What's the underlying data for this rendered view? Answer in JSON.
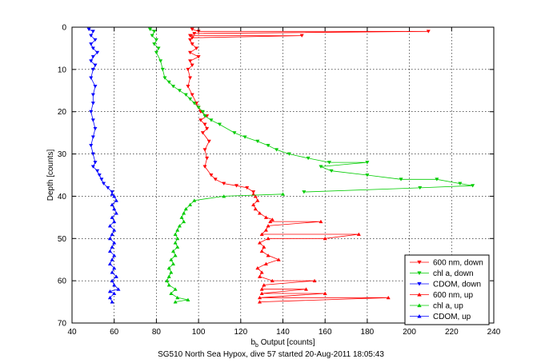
{
  "chart_data": {
    "type": "line",
    "title": "",
    "caption": "SG510 North Sea Hypox, dive 57 started 20-Aug-2011 18:05:43",
    "xlabel_main": "b",
    "xlabel_sub": "b",
    "xlabel_rest": " Output [counts]",
    "ylabel": "Depth [counts]",
    "xlim": [
      40,
      240
    ],
    "ylim": [
      0,
      70
    ],
    "y_reversed": true,
    "grid": true,
    "legend_position": "bottom-right",
    "xticks": [
      "40",
      "60",
      "80",
      "100",
      "120",
      "140",
      "160",
      "180",
      "200",
      "220",
      "240"
    ],
    "yticks": [
      "0",
      "10",
      "20",
      "30",
      "40",
      "50",
      "60",
      "70"
    ],
    "series": [
      {
        "name": "600 nm, down",
        "color": "#ff0000",
        "marker": "down",
        "points": [
          [
            97,
            0.5
          ],
          [
            100,
            1
          ],
          [
            209,
            1
          ],
          [
            98,
            1.5
          ],
          [
            96,
            2
          ],
          [
            149,
            2
          ],
          [
            97,
            2.5
          ],
          [
            96,
            3
          ],
          [
            97,
            4
          ],
          [
            99,
            5
          ],
          [
            96,
            6
          ],
          [
            100,
            7
          ],
          [
            96,
            8
          ],
          [
            97,
            9
          ],
          [
            95,
            10
          ],
          [
            96,
            12
          ],
          [
            95,
            14
          ],
          [
            97,
            16
          ],
          [
            99,
            18
          ],
          [
            100,
            19
          ],
          [
            101,
            20
          ],
          [
            104,
            21
          ],
          [
            101,
            22
          ],
          [
            103,
            23
          ],
          [
            104,
            24
          ],
          [
            102,
            25
          ],
          [
            105,
            27
          ],
          [
            103,
            29
          ],
          [
            104,
            31
          ],
          [
            103,
            33
          ],
          [
            106,
            35
          ],
          [
            108,
            36
          ],
          [
            112,
            37
          ],
          [
            118,
            37.5
          ],
          [
            123,
            38
          ],
          [
            126,
            39
          ]
        ]
      },
      {
        "name": "chl a, down",
        "color": "#00cc00",
        "marker": "down",
        "points": [
          [
            77,
            0.5
          ],
          [
            79,
            1
          ],
          [
            78,
            2
          ],
          [
            80,
            3
          ],
          [
            79,
            4
          ],
          [
            81,
            5
          ],
          [
            80,
            6
          ],
          [
            82,
            8
          ],
          [
            83,
            10
          ],
          [
            84,
            12
          ],
          [
            86,
            13
          ],
          [
            88,
            14
          ],
          [
            91,
            15
          ],
          [
            94,
            16
          ],
          [
            96,
            17
          ],
          [
            98,
            18
          ],
          [
            100,
            19
          ],
          [
            102,
            20
          ],
          [
            103,
            21
          ],
          [
            106,
            22
          ],
          [
            110,
            23
          ],
          [
            117,
            25
          ],
          [
            122,
            26
          ],
          [
            128,
            27
          ],
          [
            133,
            28
          ],
          [
            137,
            29
          ],
          [
            143,
            30
          ],
          [
            152,
            31
          ],
          [
            162,
            32
          ],
          [
            180,
            32
          ],
          [
            158,
            33
          ],
          [
            163,
            34
          ],
          [
            180,
            35
          ],
          [
            196,
            36
          ],
          [
            213,
            36
          ],
          [
            224,
            37
          ],
          [
            230,
            37.5
          ],
          [
            205,
            38
          ],
          [
            150,
            39
          ]
        ]
      },
      {
        "name": "CDOM, down",
        "color": "#0000ff",
        "marker": "down",
        "points": [
          [
            48,
            0.5
          ],
          [
            50,
            1
          ],
          [
            49,
            2
          ],
          [
            51,
            3
          ],
          [
            49,
            4
          ],
          [
            50,
            5
          ],
          [
            52,
            6
          ],
          [
            50,
            7
          ],
          [
            49,
            8
          ],
          [
            51,
            9
          ],
          [
            50,
            10
          ],
          [
            49,
            12
          ],
          [
            51,
            14
          ],
          [
            50,
            16
          ],
          [
            50,
            18
          ],
          [
            49,
            20
          ],
          [
            50,
            22
          ],
          [
            51,
            24
          ],
          [
            50,
            26
          ],
          [
            49,
            28
          ],
          [
            50,
            30
          ],
          [
            51,
            32
          ],
          [
            50,
            33
          ],
          [
            52,
            34
          ],
          [
            53,
            35
          ],
          [
            54,
            36
          ],
          [
            55,
            37
          ],
          [
            57,
            38
          ],
          [
            59,
            39
          ]
        ]
      },
      {
        "name": "600 nm, up",
        "color": "#ff0000",
        "marker": "up",
        "points": [
          [
            126,
            39.5
          ],
          [
            127,
            40
          ],
          [
            128,
            41
          ],
          [
            126,
            42
          ],
          [
            127,
            43
          ],
          [
            129,
            44
          ],
          [
            132,
            45
          ],
          [
            135,
            45.5
          ],
          [
            134,
            46
          ],
          [
            158,
            46
          ],
          [
            133,
            47
          ],
          [
            132,
            48
          ],
          [
            130,
            49
          ],
          [
            176,
            49
          ],
          [
            160,
            50
          ],
          [
            133,
            50
          ],
          [
            129,
            51
          ],
          [
            131,
            52
          ],
          [
            130,
            53
          ],
          [
            133,
            54
          ],
          [
            138,
            55
          ],
          [
            132,
            56
          ],
          [
            128,
            57
          ],
          [
            130,
            58
          ],
          [
            129,
            59
          ],
          [
            135,
            60
          ],
          [
            155,
            60
          ],
          [
            131,
            61
          ],
          [
            130,
            62
          ],
          [
            151,
            62
          ],
          [
            130,
            63
          ],
          [
            160,
            63
          ],
          [
            129,
            64
          ],
          [
            190,
            64
          ],
          [
            129,
            65
          ]
        ]
      },
      {
        "name": "chl a, up",
        "color": "#00cc00",
        "marker": "up",
        "points": [
          [
            140,
            39.5
          ],
          [
            112,
            40
          ],
          [
            98,
            41
          ],
          [
            96,
            42
          ],
          [
            94,
            43
          ],
          [
            93,
            44
          ],
          [
            92,
            45
          ],
          [
            93,
            46
          ],
          [
            91,
            47
          ],
          [
            90,
            48
          ],
          [
            89,
            49
          ],
          [
            90,
            50
          ],
          [
            89,
            51
          ],
          [
            90,
            52
          ],
          [
            88,
            53
          ],
          [
            89,
            54
          ],
          [
            87,
            55
          ],
          [
            88,
            56
          ],
          [
            86,
            57
          ],
          [
            87,
            58
          ],
          [
            86,
            59
          ],
          [
            85,
            60
          ],
          [
            86,
            61
          ],
          [
            89,
            62
          ],
          [
            87,
            63
          ],
          [
            90,
            64
          ],
          [
            95,
            64.5
          ],
          [
            89,
            65
          ]
        ]
      },
      {
        "name": "CDOM, up",
        "color": "#0000ff",
        "marker": "up",
        "points": [
          [
            59,
            39.5
          ],
          [
            60,
            40
          ],
          [
            61,
            41
          ],
          [
            59,
            42
          ],
          [
            60,
            43
          ],
          [
            61,
            44
          ],
          [
            59,
            45
          ],
          [
            60,
            46
          ],
          [
            58,
            47
          ],
          [
            60,
            48
          ],
          [
            59,
            49
          ],
          [
            58,
            50
          ],
          [
            60,
            51
          ],
          [
            59,
            52
          ],
          [
            58,
            53
          ],
          [
            60,
            54
          ],
          [
            59,
            55
          ],
          [
            58,
            56
          ],
          [
            60,
            57
          ],
          [
            59,
            58
          ],
          [
            61,
            59
          ],
          [
            59,
            60
          ],
          [
            60,
            61
          ],
          [
            62,
            62
          ],
          [
            58,
            62.5
          ],
          [
            60,
            63
          ],
          [
            58,
            64
          ],
          [
            59,
            65
          ]
        ]
      }
    ]
  }
}
